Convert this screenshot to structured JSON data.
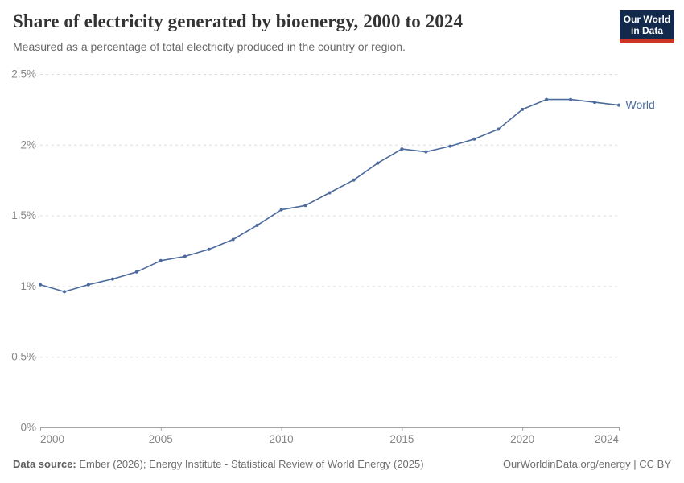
{
  "header": {
    "title": "Share of electricity generated by bioenergy, 2000 to 2024",
    "subtitle": "Measured as a percentage of total electricity produced in the country or region."
  },
  "logo": {
    "line1": "Our World",
    "line2": "in Data",
    "bg_color": "#12294b",
    "bar_color": "#cc3425"
  },
  "footer": {
    "source_label": "Data source:",
    "source_text": " Ember (2026); Energy Institute - Statistical Review of World Energy (2025)",
    "site_text": "OurWorldinData.org/energy | CC BY"
  },
  "chart_data": {
    "type": "line",
    "title": "Share of electricity generated by bioenergy, 2000 to 2024",
    "subtitle": "Measured as a percentage of total electricity produced in the country or region.",
    "xlabel": "",
    "ylabel": "",
    "xlim": [
      2000,
      2024
    ],
    "ylim": [
      0,
      2.5
    ],
    "x_ticks": [
      2000,
      2005,
      2010,
      2015,
      2020,
      2024
    ],
    "y_ticks": [
      0,
      0.5,
      1,
      1.5,
      2,
      2.5
    ],
    "y_tick_labels": [
      "0%",
      "0.5%",
      "1%",
      "1.5%",
      "2%",
      "2.5%"
    ],
    "grid": true,
    "legend_position": "end-of-line label",
    "colors": {
      "line": "#4c6a9c",
      "gridline": "#dcdcdc",
      "axis": "#a3a3a3",
      "tick_text": "#858585"
    },
    "series": [
      {
        "name": "World",
        "color": "#4c6a9c",
        "x": [
          2000,
          2001,
          2002,
          2003,
          2004,
          2005,
          2006,
          2007,
          2008,
          2009,
          2010,
          2011,
          2012,
          2013,
          2014,
          2015,
          2016,
          2017,
          2018,
          2019,
          2020,
          2021,
          2022,
          2023,
          2024
        ],
        "y": [
          1.01,
          0.96,
          1.01,
          1.05,
          1.1,
          1.18,
          1.21,
          1.26,
          1.33,
          1.43,
          1.54,
          1.57,
          1.66,
          1.75,
          1.87,
          1.97,
          1.95,
          1.99,
          2.04,
          2.11,
          2.25,
          2.32,
          2.32,
          2.3,
          2.28
        ]
      }
    ]
  }
}
